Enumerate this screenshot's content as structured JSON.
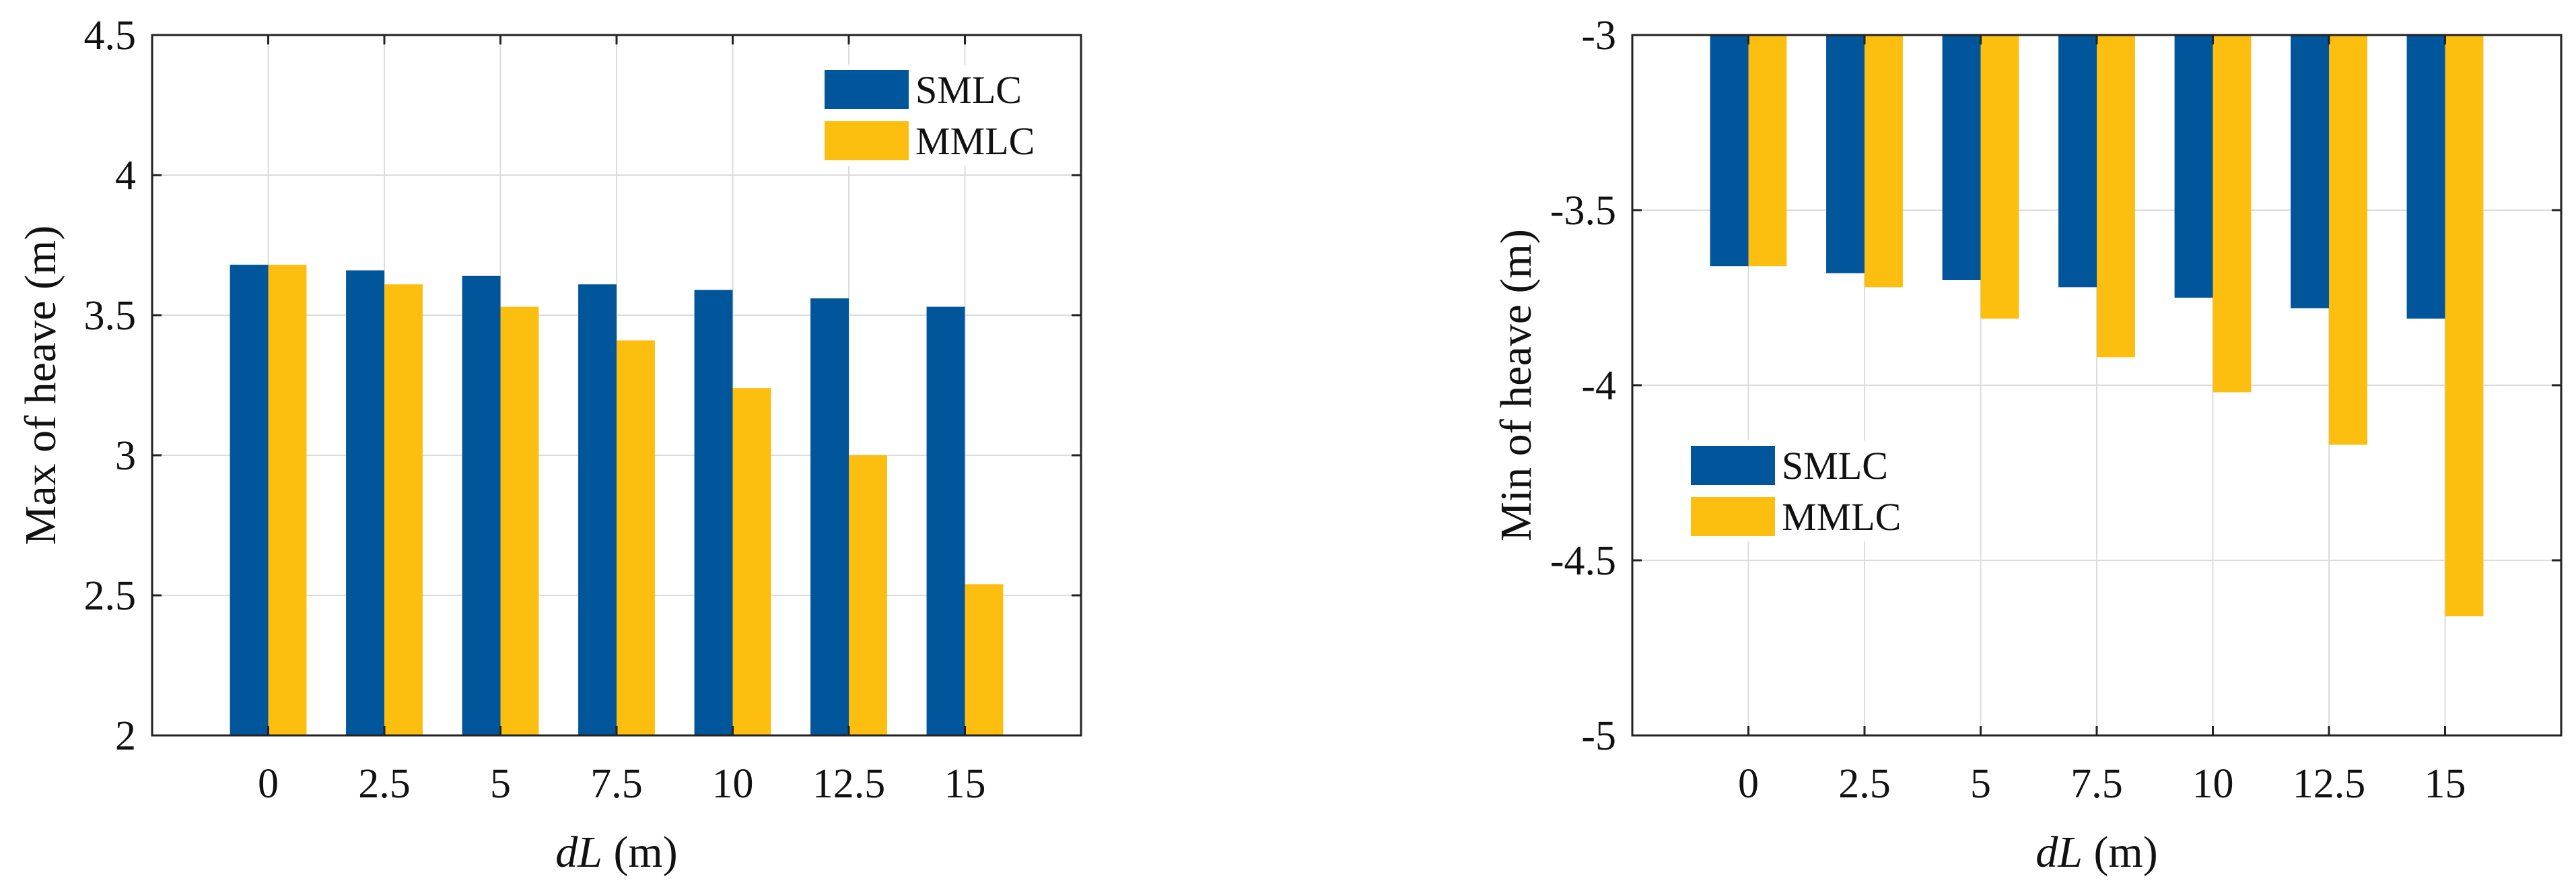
{
  "chart_data": [
    {
      "type": "bar",
      "categories": [
        "0",
        "2.5",
        "5",
        "7.5",
        "10",
        "12.5",
        "15"
      ],
      "series": [
        {
          "name": "SMLC",
          "values": [
            3.68,
            3.66,
            3.64,
            3.61,
            3.59,
            3.56,
            3.53
          ]
        },
        {
          "name": "MMLC",
          "values": [
            3.68,
            3.61,
            3.53,
            3.41,
            3.24,
            3.0,
            2.54
          ]
        }
      ],
      "colors": {
        "SMLC": "#00559B",
        "MMLC": "#FDBF0F"
      },
      "title": "",
      "xlabel_italic": "dL",
      "xlabel_unit": " (m)",
      "ylabel": "Max of heave (m)",
      "ylim": [
        2,
        4.5
      ],
      "yticks": [
        2,
        2.5,
        3,
        3.5,
        4,
        4.5
      ],
      "ytick_labels": [
        "2",
        "2.5",
        "3",
        "3.5",
        "4",
        "4.5"
      ],
      "grid": true,
      "legend_position": "top-right"
    },
    {
      "type": "bar",
      "categories": [
        "0",
        "2.5",
        "5",
        "7.5",
        "10",
        "12.5",
        "15"
      ],
      "series": [
        {
          "name": "SMLC",
          "values": [
            -3.66,
            -3.68,
            -3.7,
            -3.72,
            -3.75,
            -3.78,
            -3.81
          ]
        },
        {
          "name": "MMLC",
          "values": [
            -3.66,
            -3.72,
            -3.81,
            -3.92,
            -4.02,
            -4.17,
            -4.66
          ]
        }
      ],
      "colors": {
        "SMLC": "#00559B",
        "MMLC": "#FDBF0F"
      },
      "title": "",
      "xlabel_italic": "dL",
      "xlabel_unit": " (m)",
      "ylabel": "Min of heave (m)",
      "ylim": [
        -5,
        -3
      ],
      "yticks": [
        -5,
        -4.5,
        -4,
        -3.5,
        -3
      ],
      "ytick_labels": [
        "-5",
        "-4.5",
        "-4",
        "-3.5",
        "-3"
      ],
      "grid": true,
      "legend_position": "middle-left"
    }
  ]
}
